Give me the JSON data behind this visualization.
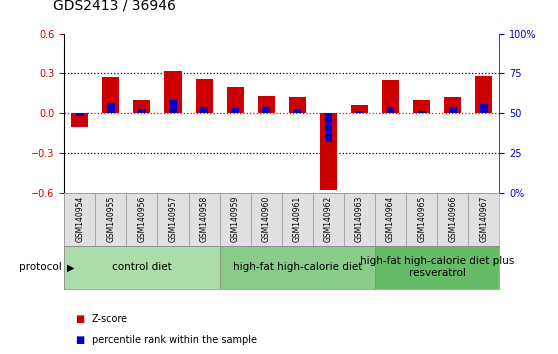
{
  "title": "GDS2413 / 36946",
  "samples": [
    "GSM140954",
    "GSM140955",
    "GSM140956",
    "GSM140957",
    "GSM140958",
    "GSM140959",
    "GSM140960",
    "GSM140961",
    "GSM140962",
    "GSM140963",
    "GSM140964",
    "GSM140965",
    "GSM140966",
    "GSM140967"
  ],
  "zscore": [
    -0.1,
    0.27,
    0.1,
    0.32,
    0.26,
    0.2,
    0.13,
    0.12,
    -0.58,
    0.06,
    0.25,
    0.1,
    0.12,
    0.28
  ],
  "percentile": [
    -0.02,
    0.08,
    0.03,
    0.1,
    0.05,
    0.04,
    0.05,
    0.03,
    -0.22,
    0.02,
    0.05,
    0.02,
    0.05,
    0.07
  ],
  "zscore_color": "#cc0000",
  "percentile_color": "#0000cc",
  "groups": [
    {
      "label": "control diet",
      "start": 0,
      "end": 4,
      "color": "#aaddaa"
    },
    {
      "label": "high-fat high-calorie diet",
      "start": 5,
      "end": 9,
      "color": "#88cc88"
    },
    {
      "label": "high-fat high-calorie diet plus\nresveratrol",
      "start": 10,
      "end": 13,
      "color": "#66bb66"
    }
  ],
  "ylim": [
    -0.6,
    0.6
  ],
  "y_right_ticks": [
    0,
    25,
    50,
    75,
    100
  ],
  "y_right_labels": [
    "0%",
    "25",
    "50",
    "75",
    "100%"
  ],
  "yticks": [
    -0.6,
    -0.3,
    0.0,
    0.3,
    0.6
  ],
  "bar_width": 0.55,
  "protocol_label": "protocol",
  "legend_zscore": "Z-score",
  "legend_percentile": "percentile rank within the sample",
  "title_fontsize": 10,
  "tick_fontsize": 7,
  "group_label_fontsize": 7.5,
  "ylabel_color_left": "#cc0000",
  "ylabel_color_right": "#0000cc",
  "bg_color": "#ffffff"
}
